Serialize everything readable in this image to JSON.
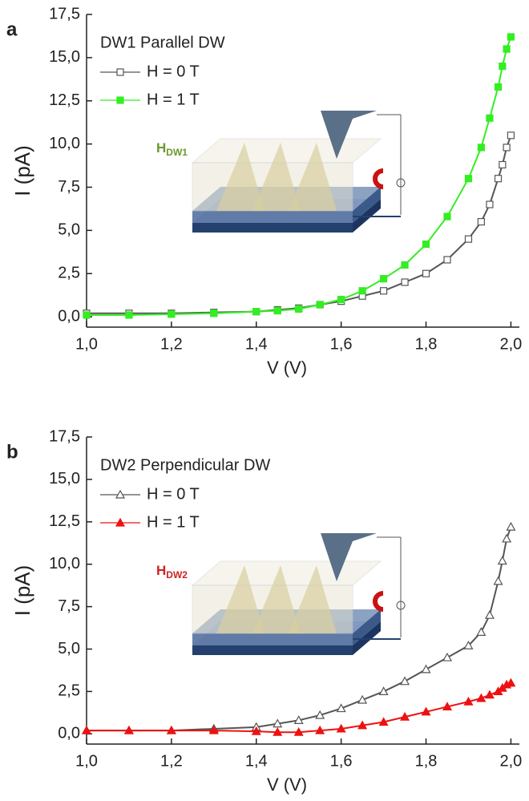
{
  "chart_data": [
    {
      "type": "scatter",
      "panel_label": "a",
      "title": "DW1 Parallel DW",
      "x_label": "V (V)",
      "y_label": "I (pA)",
      "inset_label": "H",
      "inset_label_sub": "DW1",
      "inset_color": "#6a9a2a",
      "xlim": [
        1.0,
        2.02
      ],
      "ylim": [
        -0.6,
        17.5
      ],
      "xticks": [
        {
          "value": 1.0,
          "label": "1,0"
        },
        {
          "value": 1.2,
          "label": "1,2"
        },
        {
          "value": 1.4,
          "label": "1,4"
        },
        {
          "value": 1.6,
          "label": "1,6"
        },
        {
          "value": 1.8,
          "label": "1,8"
        },
        {
          "value": 2.0,
          "label": "2,0"
        }
      ],
      "yticks": [
        {
          "value": 0,
          "label": "0,0"
        },
        {
          "value": 2.5,
          "label": "2,5"
        },
        {
          "value": 5,
          "label": "5,0"
        },
        {
          "value": 7.5,
          "label": "7,5"
        },
        {
          "value": 10,
          "label": "10,0"
        },
        {
          "value": 12.5,
          "label": "12,5"
        },
        {
          "value": 15,
          "label": "15,0"
        },
        {
          "value": 17.5,
          "label": "17,5"
        }
      ],
      "x": [
        1.0,
        1.1,
        1.2,
        1.3,
        1.4,
        1.45,
        1.5,
        1.55,
        1.6,
        1.65,
        1.7,
        1.75,
        1.8,
        1.85,
        1.9,
        1.93,
        1.95,
        1.97,
        1.98,
        1.99,
        2.0
      ],
      "series": [
        {
          "name": "H = 0 T",
          "color": "#555555",
          "marker": "square-open",
          "values": [
            0.2,
            0.2,
            0.2,
            0.25,
            0.3,
            0.4,
            0.5,
            0.7,
            0.9,
            1.2,
            1.5,
            2.0,
            2.5,
            3.3,
            4.5,
            5.5,
            6.5,
            8.0,
            8.8,
            9.8,
            10.5
          ]
        },
        {
          "name": "H = 1 T",
          "color": "#33ee22",
          "marker": "square",
          "values": [
            0.1,
            0.1,
            0.15,
            0.2,
            0.3,
            0.35,
            0.45,
            0.7,
            1.0,
            1.5,
            2.2,
            3.0,
            4.2,
            5.8,
            8.0,
            9.8,
            11.5,
            13.3,
            14.5,
            15.5,
            16.2
          ]
        }
      ]
    },
    {
      "type": "scatter",
      "panel_label": "b",
      "title": "DW2 Perpendicular DW",
      "x_label": "V (V)",
      "y_label": "I (pA)",
      "inset_label": "H",
      "inset_label_sub": "DW2",
      "inset_color": "#cc2222",
      "xlim": [
        1.0,
        2.02
      ],
      "ylim": [
        -0.6,
        17.5
      ],
      "xticks": [
        {
          "value": 1.0,
          "label": "1,0"
        },
        {
          "value": 1.2,
          "label": "1,2"
        },
        {
          "value": 1.4,
          "label": "1,4"
        },
        {
          "value": 1.6,
          "label": "1,6"
        },
        {
          "value": 1.8,
          "label": "1,8"
        },
        {
          "value": 2.0,
          "label": "2,0"
        }
      ],
      "yticks": [
        {
          "value": 0,
          "label": "0,0"
        },
        {
          "value": 2.5,
          "label": "2,5"
        },
        {
          "value": 5,
          "label": "5,0"
        },
        {
          "value": 7.5,
          "label": "7,5"
        },
        {
          "value": 10,
          "label": "10,0"
        },
        {
          "value": 12.5,
          "label": "12,5"
        },
        {
          "value": 15,
          "label": "15,0"
        },
        {
          "value": 17.5,
          "label": "17,5"
        }
      ],
      "x": [
        1.0,
        1.1,
        1.2,
        1.3,
        1.4,
        1.45,
        1.5,
        1.55,
        1.6,
        1.65,
        1.7,
        1.75,
        1.8,
        1.85,
        1.9,
        1.93,
        1.95,
        1.97,
        1.98,
        1.99,
        2.0
      ],
      "series": [
        {
          "name": "H = 0 T",
          "color": "#555555",
          "marker": "triangle-open",
          "values": [
            0.2,
            0.2,
            0.2,
            0.3,
            0.4,
            0.6,
            0.8,
            1.1,
            1.5,
            2.0,
            2.5,
            3.1,
            3.8,
            4.5,
            5.2,
            6.0,
            7.0,
            9.0,
            10.2,
            11.5,
            12.2
          ]
        },
        {
          "name": "H = 1 T",
          "color": "#ee1111",
          "marker": "triangle",
          "values": [
            0.2,
            0.2,
            0.2,
            0.2,
            0.15,
            0.1,
            0.1,
            0.2,
            0.3,
            0.5,
            0.7,
            1.0,
            1.3,
            1.6,
            1.9,
            2.1,
            2.3,
            2.5,
            2.7,
            2.9,
            3.0
          ]
        }
      ]
    }
  ]
}
